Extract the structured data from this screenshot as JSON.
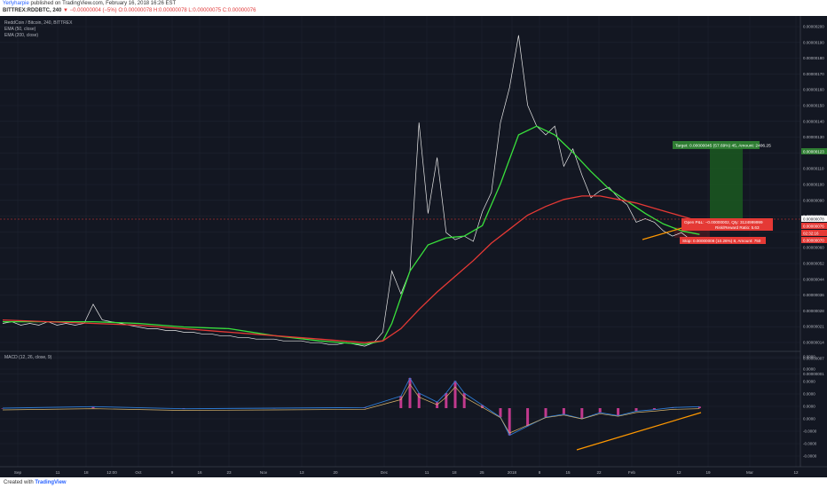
{
  "header": {
    "user": "Yerlyharpie",
    "published": "published on TradingView.com, February 16, 2018 16:26 EST",
    "symbol_line": "BITTREX:RDDBTC, 240",
    "change": "▼ −0.00000004 (−5%)",
    "ohlc": "O:0.00000078 H:0.00000078 L:0.00000075 C:0.00000076"
  },
  "legend": {
    "title": "ReddCoin / Bitcoin, 240, BITTREX",
    "ema50": "EMA (50, close)",
    "ema200": "EMA (200, close)",
    "macd": "MACD (12, 26, close, 9)"
  },
  "footer": {
    "created_with": "Created with",
    "brand": "TradingView"
  },
  "annotations": {
    "target": "Target: 0.00000045 (57.69%) 45, Amount: 2406.25",
    "open_pl": "Open P&L: −0.00000002, Qty: 3124999999",
    "risk_reward": "Risk/Reward Ratio: 5.63",
    "stop": "Stop: 0.00000008 (10.26%) 8, Amount: 750"
  },
  "price_marks": {
    "target": "0.00000123",
    "current": "0.00000078",
    "entry": "0.00000076",
    "countdown": "02:32:16",
    "stop": "0.00000070"
  },
  "chart_data": {
    "type": "line",
    "colors": {
      "price": "#e8e8e8",
      "ema50": "#39e03c",
      "ema200": "#e53935",
      "macd": "#2e7cd6",
      "signal": "#d8b46a",
      "hist": "#e040a0",
      "trend": "#ff9800",
      "target_zone": "#1b5e20",
      "stop_zone": "#b71c1c"
    },
    "price_axis": {
      "ticks": [
        "0.00000200",
        "0.00000190",
        "0.00000180",
        "0.00000170",
        "0.00000160",
        "0.00000150",
        "0.00000140",
        "0.00000130",
        "0.00000120",
        "0.00000110",
        "0.00000100",
        "0.00000090",
        "0.00000080",
        "0.00000070",
        "0.00000060",
        "0.00000052",
        "0.00000044",
        "0.00000036",
        "0.00000028",
        "0.00000021",
        "0.00000014",
        "0.00000007",
        "0.00000001"
      ],
      "ylim": [
        1e-08,
        2e-06
      ]
    },
    "macd_axis": {
      "ticks": [
        "0.0000",
        "0.0000",
        "0.0000",
        "0.0000",
        "0.0000",
        "0.0000",
        "-0.0000",
        "-0.0000",
        "-0.0000"
      ]
    },
    "time_axis": {
      "labels": [
        "Sep",
        "11",
        "18",
        "12:00",
        "Oct",
        "9",
        "16",
        "23",
        "Nov",
        "13",
        "20",
        "Dec",
        "11",
        "18",
        "25",
        "2018",
        "8",
        "15",
        "22",
        "Feb",
        "12",
        "19",
        "Mar",
        "12"
      ]
    },
    "series": [
      {
        "name": "Price",
        "points": [
          [
            0,
            0.3
          ],
          [
            1,
            0.31
          ],
          [
            2,
            0.29
          ],
          [
            3,
            0.3
          ],
          [
            4,
            0.29
          ],
          [
            5,
            0.31
          ],
          [
            6,
            0.29
          ],
          [
            7,
            0.3
          ],
          [
            8,
            0.29
          ],
          [
            9,
            0.3
          ],
          [
            10,
            0.41
          ],
          [
            11,
            0.32
          ],
          [
            12,
            0.31
          ],
          [
            13,
            0.3
          ],
          [
            14,
            0.29
          ],
          [
            15,
            0.28
          ],
          [
            16,
            0.27
          ],
          [
            17,
            0.27
          ],
          [
            18,
            0.26
          ],
          [
            19,
            0.26
          ],
          [
            20,
            0.25
          ],
          [
            21,
            0.25
          ],
          [
            22,
            0.24
          ],
          [
            23,
            0.24
          ],
          [
            24,
            0.23
          ],
          [
            25,
            0.23
          ],
          [
            26,
            0.22
          ],
          [
            27,
            0.22
          ],
          [
            28,
            0.21
          ],
          [
            29,
            0.21
          ],
          [
            30,
            0.21
          ],
          [
            31,
            0.2
          ],
          [
            32,
            0.2
          ],
          [
            33,
            0.2
          ],
          [
            34,
            0.19
          ],
          [
            35,
            0.19
          ],
          [
            36,
            0.18
          ],
          [
            37,
            0.18
          ],
          [
            38,
            0.19
          ],
          [
            39,
            0.18
          ],
          [
            40,
            0.17
          ],
          [
            41,
            0.19
          ],
          [
            42,
            0.25
          ],
          [
            43,
            0.6
          ],
          [
            44,
            0.47
          ],
          [
            45,
            0.6
          ],
          [
            46,
            1.45
          ],
          [
            47,
            0.93
          ],
          [
            48,
            1.25
          ],
          [
            49,
            0.82
          ],
          [
            50,
            0.78
          ],
          [
            51,
            0.8
          ],
          [
            52,
            0.77
          ],
          [
            53,
            0.94
          ],
          [
            54,
            1.05
          ],
          [
            55,
            1.45
          ],
          [
            56,
            1.65
          ],
          [
            57,
            1.95
          ],
          [
            58,
            1.55
          ],
          [
            59,
            1.43
          ],
          [
            60,
            1.38
          ],
          [
            61,
            1.43
          ],
          [
            62,
            1.2
          ],
          [
            63,
            1.3
          ],
          [
            64,
            1.15
          ],
          [
            65,
            1.02
          ],
          [
            66,
            1.06
          ],
          [
            67,
            1.08
          ],
          [
            68,
            1.02
          ],
          [
            69,
            0.98
          ],
          [
            70,
            0.88
          ],
          [
            71,
            0.9
          ],
          [
            72,
            0.88
          ],
          [
            73,
            0.83
          ],
          [
            74,
            0.8
          ],
          [
            75,
            0.82
          ],
          [
            76,
            0.78
          ],
          [
            77,
            0.78
          ]
        ]
      },
      {
        "name": "EMA (50, close)",
        "points": [
          [
            0,
            0.31
          ],
          [
            5,
            0.31
          ],
          [
            10,
            0.31
          ],
          [
            15,
            0.3
          ],
          [
            20,
            0.28
          ],
          [
            25,
            0.27
          ],
          [
            30,
            0.23
          ],
          [
            35,
            0.2
          ],
          [
            40,
            0.18
          ],
          [
            42,
            0.2
          ],
          [
            43,
            0.3
          ],
          [
            44,
            0.45
          ],
          [
            45,
            0.6
          ],
          [
            47,
            0.75
          ],
          [
            49,
            0.79
          ],
          [
            51,
            0.8
          ],
          [
            53,
            0.86
          ],
          [
            55,
            1.1
          ],
          [
            57,
            1.38
          ],
          [
            59,
            1.43
          ],
          [
            61,
            1.38
          ],
          [
            63,
            1.28
          ],
          [
            65,
            1.17
          ],
          [
            67,
            1.07
          ],
          [
            69,
            1.0
          ],
          [
            71,
            0.93
          ],
          [
            73,
            0.87
          ],
          [
            75,
            0.83
          ],
          [
            77,
            0.81
          ]
        ]
      },
      {
        "name": "EMA (200, close)",
        "points": [
          [
            0,
            0.32
          ],
          [
            5,
            0.31
          ],
          [
            10,
            0.3
          ],
          [
            15,
            0.29
          ],
          [
            20,
            0.27
          ],
          [
            25,
            0.25
          ],
          [
            30,
            0.23
          ],
          [
            35,
            0.21
          ],
          [
            40,
            0.19
          ],
          [
            42,
            0.2
          ],
          [
            44,
            0.27
          ],
          [
            46,
            0.38
          ],
          [
            48,
            0.48
          ],
          [
            50,
            0.57
          ],
          [
            52,
            0.66
          ],
          [
            54,
            0.76
          ],
          [
            56,
            0.84
          ],
          [
            58,
            0.92
          ],
          [
            60,
            0.97
          ],
          [
            62,
            1.01
          ],
          [
            64,
            1.03
          ],
          [
            66,
            1.03
          ],
          [
            68,
            1.01
          ],
          [
            70,
            0.99
          ],
          [
            72,
            0.96
          ],
          [
            74,
            0.93
          ],
          [
            76,
            0.9
          ],
          [
            78,
            0.88
          ]
        ]
      }
    ],
    "macd_points": [
      [
        0,
        0
      ],
      [
        10,
        0.05
      ],
      [
        20,
        -0.02
      ],
      [
        30,
        0
      ],
      [
        40,
        0.02
      ],
      [
        44,
        0.4
      ],
      [
        45,
        1.0
      ],
      [
        46,
        0.5
      ],
      [
        48,
        0.2
      ],
      [
        49,
        0.5
      ],
      [
        50,
        0.9
      ],
      [
        51,
        0.5
      ],
      [
        53,
        0.1
      ],
      [
        55,
        -0.3
      ],
      [
        56,
        -0.9
      ],
      [
        58,
        -0.6
      ],
      [
        60,
        -0.3
      ],
      [
        62,
        -0.2
      ],
      [
        64,
        -0.35
      ],
      [
        66,
        -0.15
      ],
      [
        68,
        -0.25
      ],
      [
        70,
        -0.1
      ],
      [
        72,
        -0.05
      ],
      [
        74,
        0.02
      ],
      [
        77,
        0.05
      ]
    ]
  }
}
